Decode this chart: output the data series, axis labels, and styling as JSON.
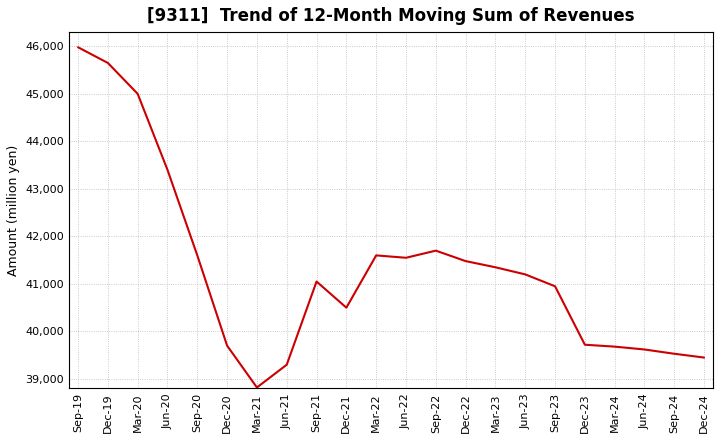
{
  "title": "[9311]  Trend of 12-Month Moving Sum of Revenues",
  "ylabel": "Amount (million yen)",
  "background_color": "#ffffff",
  "line_color": "#cc0000",
  "grid_color": "#bbbbbb",
  "title_fontsize": 12,
  "label_fontsize": 9,
  "tick_fontsize": 8,
  "x_labels": [
    "Sep-19",
    "Dec-19",
    "Mar-20",
    "Jun-20",
    "Sep-20",
    "Dec-20",
    "Mar-21",
    "Jun-21",
    "Sep-21",
    "Dec-21",
    "Mar-22",
    "Jun-22",
    "Sep-22",
    "Dec-22",
    "Mar-23",
    "Jun-23",
    "Sep-23",
    "Dec-23",
    "Mar-24",
    "Jun-24",
    "Sep-24",
    "Dec-24"
  ],
  "y_values": [
    45980,
    45650,
    45000,
    43400,
    41600,
    39700,
    38820,
    39300,
    41050,
    40500,
    41600,
    41550,
    41700,
    41480,
    41350,
    41200,
    40950,
    39720,
    39680,
    39620,
    39530,
    39450
  ],
  "ylim_min": 38800,
  "ylim_max": 46300,
  "yticks": [
    39000,
    40000,
    41000,
    42000,
    43000,
    44000,
    45000,
    46000
  ]
}
